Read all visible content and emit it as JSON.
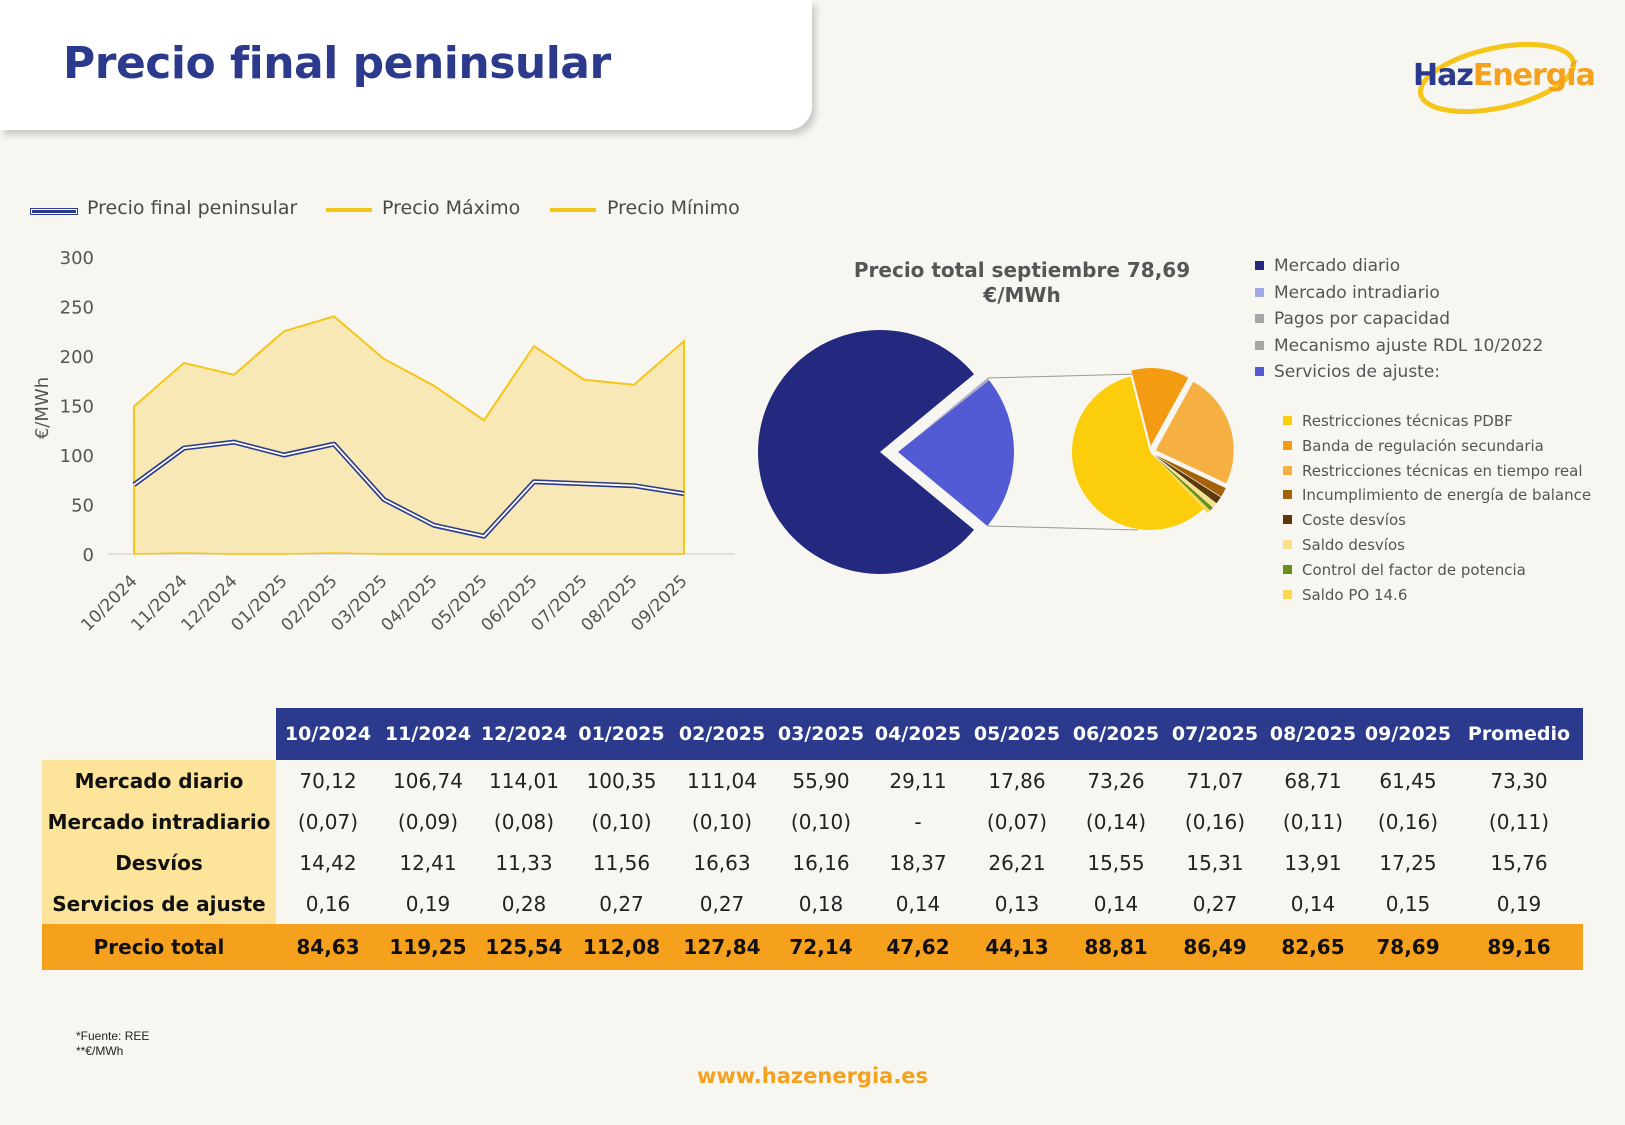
{
  "header": {
    "title": "Precio final peninsular"
  },
  "logo": {
    "haz": "Haz",
    "energia": "Energía"
  },
  "line_legend": [
    {
      "label": "Precio final peninsular",
      "color": "#2b3a8c"
    },
    {
      "label": "Precio Máximo",
      "color": "#f5c518"
    },
    {
      "label": "Precio Mínimo",
      "color": "#f5c518"
    }
  ],
  "chart_data": [
    {
      "type": "area",
      "ylabel": "€/MWh",
      "ylim": [
        0,
        300
      ],
      "yticks": [
        0,
        50,
        100,
        150,
        200,
        250,
        300
      ],
      "categories": [
        "10/2024",
        "11/2024",
        "12/2024",
        "01/2025",
        "02/2025",
        "03/2025",
        "04/2025",
        "05/2025",
        "06/2025",
        "07/2025",
        "08/2025",
        "09/2025"
      ],
      "series": [
        {
          "name": "Precio final peninsular",
          "values": [
            70,
            107,
            113,
            100,
            111,
            55,
            29,
            18,
            73,
            71,
            69,
            61
          ]
        },
        {
          "name": "Precio Máximo",
          "values": [
            149,
            193,
            181,
            225,
            240,
            197,
            170,
            135,
            210,
            176,
            171,
            215
          ]
        },
        {
          "name": "Precio Mínimo",
          "values": [
            0,
            1,
            0,
            0,
            1,
            0,
            0,
            0,
            0,
            0,
            0,
            0
          ]
        }
      ],
      "grid": false,
      "legend": "top"
    },
    {
      "type": "pie",
      "title": "Precio total septiembre 78,69 €/MWh",
      "slices": [
        {
          "label": "Mercado diario",
          "value": 78,
          "color": "#22297f"
        },
        {
          "label": "Mercado intradiario",
          "value": 0.2,
          "color": "#a3a8e8"
        },
        {
          "label": "Pagos por capacidad",
          "value": 0.1,
          "color": "#a6a6a6"
        },
        {
          "label": "Mecanismo ajuste RDL 10/2022",
          "value": 0.1,
          "color": "#a6a6a6"
        },
        {
          "label": "Servicios de ajuste:",
          "value": 21.6,
          "color": "#525bd4"
        }
      ],
      "sub_slices": [
        {
          "label": "Restricciones técnicas PDBF",
          "value": 58,
          "color": "#fbcd0b"
        },
        {
          "label": "Banda de regulación secundaria",
          "value": 12,
          "color": "#f39c12"
        },
        {
          "label": "Restricciones técnicas en tiempo real",
          "value": 24,
          "color": "#f6b042"
        },
        {
          "label": "Incumplimiento de energía de balance",
          "value": 2,
          "color": "#a6620b"
        },
        {
          "label": "Coste desvíos",
          "value": 1.5,
          "color": "#5a3a0a"
        },
        {
          "label": "Saldo desvíos",
          "value": 1,
          "color": "#f8e18a"
        },
        {
          "label": "Control del factor de potencia",
          "value": 0.8,
          "color": "#6a8f1b"
        },
        {
          "label": "Saldo PO 14.6",
          "value": 0.7,
          "color": "#fbd94e"
        }
      ],
      "legend": "right"
    }
  ],
  "table": {
    "columns": [
      "10/2024",
      "11/2024",
      "12/2024",
      "01/2025",
      "02/2025",
      "03/2025",
      "04/2025",
      "05/2025",
      "06/2025",
      "07/2025",
      "08/2025",
      "09/2025",
      "Promedio"
    ],
    "rows": [
      {
        "label": "Mercado diario",
        "values": [
          "70,12",
          "106,74",
          "114,01",
          "100,35",
          "111,04",
          "55,90",
          "29,11",
          "17,86",
          "73,26",
          "71,07",
          "68,71",
          "61,45",
          "73,30"
        ]
      },
      {
        "label": "Mercado intradiario",
        "values": [
          "(0,07)",
          "(0,09)",
          "(0,08)",
          "(0,10)",
          "(0,10)",
          "(0,10)",
          "-",
          "(0,07)",
          "(0,14)",
          "(0,16)",
          "(0,11)",
          "(0,16)",
          "(0,11)"
        ]
      },
      {
        "label": "Desvíos",
        "values": [
          "14,42",
          "12,41",
          "11,33",
          "11,56",
          "16,63",
          "16,16",
          "18,37",
          "26,21",
          "15,55",
          "15,31",
          "13,91",
          "17,25",
          "15,76"
        ]
      },
      {
        "label": "Servicios de ajuste",
        "values": [
          "0,16",
          "0,19",
          "0,28",
          "0,27",
          "0,27",
          "0,18",
          "0,14",
          "0,13",
          "0,14",
          "0,27",
          "0,14",
          "0,15",
          "0,19"
        ]
      }
    ],
    "total": {
      "label": "Precio total",
      "values": [
        "84,63",
        "119,25",
        "125,54",
        "112,08",
        "127,84",
        "72,14",
        "47,62",
        "44,13",
        "88,81",
        "86,49",
        "82,65",
        "78,69",
        "89,16"
      ]
    }
  },
  "notes": [
    "*Fuente: REE",
    "**€/MWh"
  ],
  "footer": {
    "url": "www.hazenergia.es"
  }
}
